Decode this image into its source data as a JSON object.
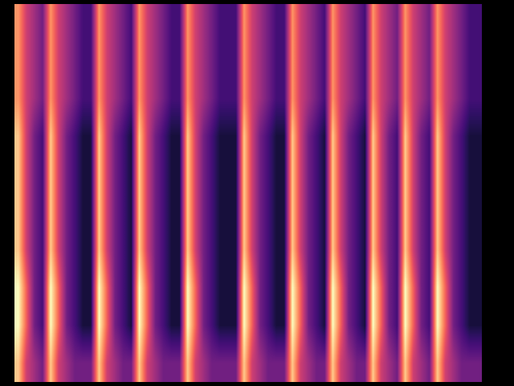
{
  "chart_data": {
    "type": "heatmap",
    "tick_labels": false,
    "color": "magma",
    "clim": [
      0,
      9
    ],
    "cells": [
      [
        7,
        5,
        4,
        3,
        7,
        5,
        4,
        3,
        2,
        2,
        7,
        5,
        4,
        3,
        2,
        7,
        5,
        4,
        3,
        2,
        2,
        7,
        5,
        4,
        3,
        2,
        2,
        2,
        7,
        5,
        4,
        3,
        2,
        2,
        7,
        5,
        4,
        3,
        2,
        7,
        5,
        4,
        3,
        2,
        7,
        5,
        4,
        3,
        7,
        5,
        4,
        3,
        7,
        5,
        4,
        3,
        2,
        2
      ],
      [
        7,
        5,
        4,
        3,
        7,
        5,
        4,
        3,
        2,
        2,
        7,
        5,
        4,
        3,
        2,
        7,
        5,
        4,
        3,
        2,
        2,
        7,
        5,
        4,
        3,
        2,
        2,
        2,
        7,
        5,
        4,
        3,
        2,
        2,
        7,
        5,
        4,
        3,
        2,
        7,
        5,
        4,
        3,
        2,
        7,
        5,
        4,
        3,
        7,
        5,
        4,
        3,
        7,
        5,
        4,
        3,
        2,
        2
      ],
      [
        7,
        5,
        4,
        3,
        7,
        5,
        4,
        3,
        2,
        2,
        7,
        5,
        4,
        3,
        2,
        7,
        5,
        4,
        3,
        2,
        2,
        7,
        5,
        4,
        3,
        2,
        2,
        2,
        7,
        5,
        4,
        3,
        2,
        2,
        7,
        5,
        4,
        3,
        2,
        7,
        5,
        4,
        3,
        2,
        7,
        5,
        4,
        3,
        7,
        5,
        4,
        3,
        7,
        5,
        4,
        3,
        2,
        2
      ],
      [
        8,
        5,
        3,
        2,
        8,
        5,
        3,
        2,
        1,
        1,
        8,
        5,
        3,
        2,
        1,
        8,
        5,
        3,
        2,
        1,
        1,
        8,
        5,
        3,
        2,
        1,
        1,
        1,
        8,
        5,
        3,
        2,
        1,
        1,
        8,
        5,
        3,
        2,
        1,
        8,
        5,
        3,
        2,
        1,
        8,
        5,
        3,
        2,
        8,
        5,
        3,
        2,
        8,
        5,
        3,
        2,
        1,
        1
      ],
      [
        8,
        5,
        3,
        2,
        8,
        5,
        3,
        2,
        1,
        1,
        8,
        5,
        3,
        2,
        1,
        8,
        5,
        3,
        2,
        1,
        1,
        8,
        5,
        3,
        2,
        1,
        1,
        1,
        8,
        5,
        3,
        2,
        1,
        1,
        8,
        5,
        3,
        2,
        1,
        8,
        5,
        3,
        2,
        1,
        8,
        5,
        3,
        2,
        8,
        5,
        3,
        2,
        8,
        5,
        3,
        2,
        1,
        1
      ],
      [
        8,
        5,
        3,
        2,
        8,
        5,
        3,
        2,
        1,
        1,
        8,
        5,
        3,
        2,
        1,
        8,
        5,
        3,
        2,
        1,
        1,
        8,
        5,
        3,
        2,
        1,
        1,
        1,
        8,
        5,
        3,
        2,
        1,
        1,
        8,
        5,
        3,
        2,
        1,
        8,
        5,
        3,
        2,
        1,
        8,
        5,
        3,
        2,
        8,
        5,
        3,
        2,
        8,
        5,
        3,
        2,
        1,
        1
      ],
      [
        8,
        5,
        3,
        2,
        8,
        5,
        3,
        2,
        1,
        1,
        8,
        5,
        3,
        2,
        1,
        8,
        5,
        3,
        2,
        1,
        1,
        8,
        5,
        3,
        2,
        1,
        1,
        1,
        8,
        5,
        3,
        2,
        1,
        1,
        8,
        5,
        3,
        2,
        1,
        8,
        5,
        3,
        2,
        1,
        8,
        5,
        3,
        2,
        8,
        5,
        3,
        2,
        8,
        5,
        3,
        2,
        1,
        1
      ],
      [
        9,
        6,
        3,
        2,
        9,
        6,
        3,
        2,
        1,
        1,
        9,
        6,
        3,
        2,
        1,
        9,
        6,
        3,
        2,
        1,
        1,
        9,
        6,
        3,
        2,
        1,
        1,
        1,
        9,
        6,
        3,
        2,
        1,
        1,
        9,
        6,
        3,
        2,
        1,
        9,
        6,
        3,
        2,
        1,
        9,
        6,
        3,
        2,
        9,
        6,
        3,
        2,
        9,
        6,
        3,
        2,
        1,
        1
      ],
      [
        9,
        6,
        3,
        2,
        9,
        6,
        3,
        2,
        1,
        1,
        9,
        6,
        3,
        2,
        1,
        9,
        6,
        3,
        2,
        1,
        1,
        9,
        6,
        3,
        2,
        1,
        1,
        1,
        9,
        6,
        3,
        2,
        1,
        1,
        9,
        6,
        3,
        2,
        1,
        9,
        6,
        3,
        2,
        1,
        9,
        6,
        3,
        2,
        9,
        6,
        3,
        2,
        9,
        6,
        3,
        2,
        1,
        1
      ],
      [
        8,
        5,
        4,
        3,
        8,
        5,
        4,
        3,
        3,
        3,
        8,
        5,
        4,
        3,
        3,
        8,
        5,
        4,
        3,
        3,
        3,
        8,
        5,
        4,
        3,
        3,
        3,
        3,
        8,
        5,
        4,
        3,
        3,
        3,
        8,
        5,
        4,
        3,
        3,
        8,
        5,
        4,
        3,
        3,
        8,
        5,
        4,
        3,
        8,
        5,
        4,
        3,
        8,
        5,
        4,
        3,
        3,
        3
      ]
    ]
  }
}
